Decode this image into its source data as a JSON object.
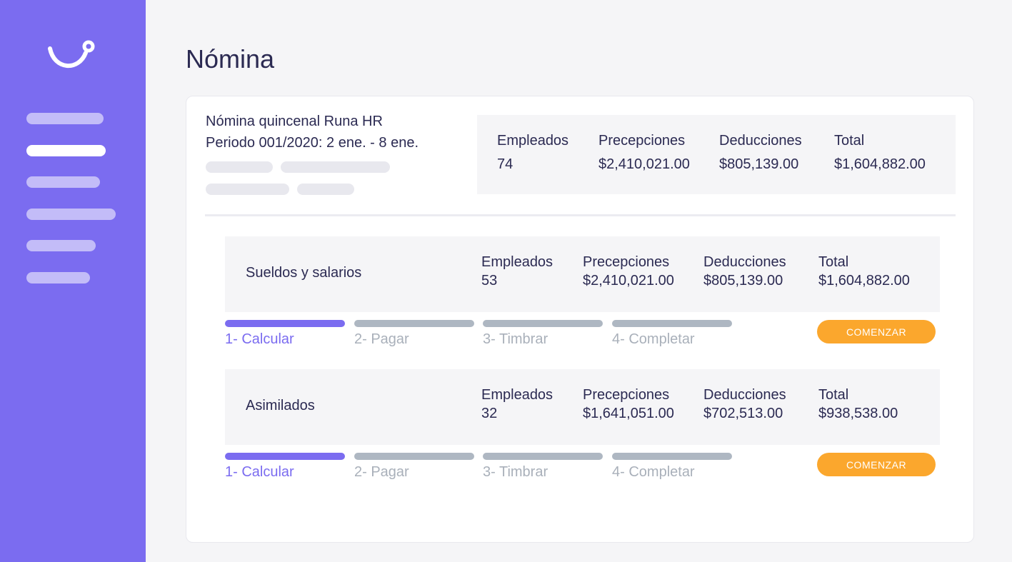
{
  "sidebar": {
    "logo_icon": "runa-smile-logo-icon",
    "bg_color": "#7b6cf0",
    "active_index": 1
  },
  "page": {
    "title": "Nómina"
  },
  "period": {
    "name": "Nómina quincenal Runa HR",
    "range": "Periodo 001/2020: 2 ene. - 8 ene."
  },
  "summary": {
    "employees_label": "Empleados",
    "employees_value": "74",
    "perceptions_label": "Precepciones",
    "perceptions_value": "$2,410,021.00",
    "deductions_label": "Deducciones",
    "deductions_value": "$805,139.00",
    "total_label": "Total",
    "total_value": "$1,604,882.00"
  },
  "payruns": [
    {
      "name": "Sueldos y salarios",
      "employees_label": "Empleados",
      "employees_value": "53",
      "perceptions_label": "Precepciones",
      "perceptions_value": "$2,410,021.00",
      "deductions_label": "Deducciones",
      "deductions_value": "$805,139.00",
      "total_label": "Total",
      "total_value": "$1,604,882.00",
      "steps": [
        "1- Calcular",
        "2- Pagar",
        "3- Timbrar",
        "4- Completar"
      ],
      "active_step": 0,
      "button_label": "COMENZAR"
    },
    {
      "name": "Asimilados",
      "employees_label": "Empleados",
      "employees_value": "32",
      "perceptions_label": "Precepciones",
      "perceptions_value": "$1,641,051.00",
      "deductions_label": "Deducciones",
      "deductions_value": "$702,513.00",
      "total_label": "Total",
      "total_value": "$938,538.00",
      "steps": [
        "1- Calcular",
        "2- Pagar",
        "3- Timbrar",
        "4- Completar"
      ],
      "active_step": 0,
      "button_label": "COMENZAR"
    }
  ],
  "colors": {
    "accent": "#7b6cf0",
    "button": "#fba72d",
    "step_inactive": "#aeb7c2"
  }
}
